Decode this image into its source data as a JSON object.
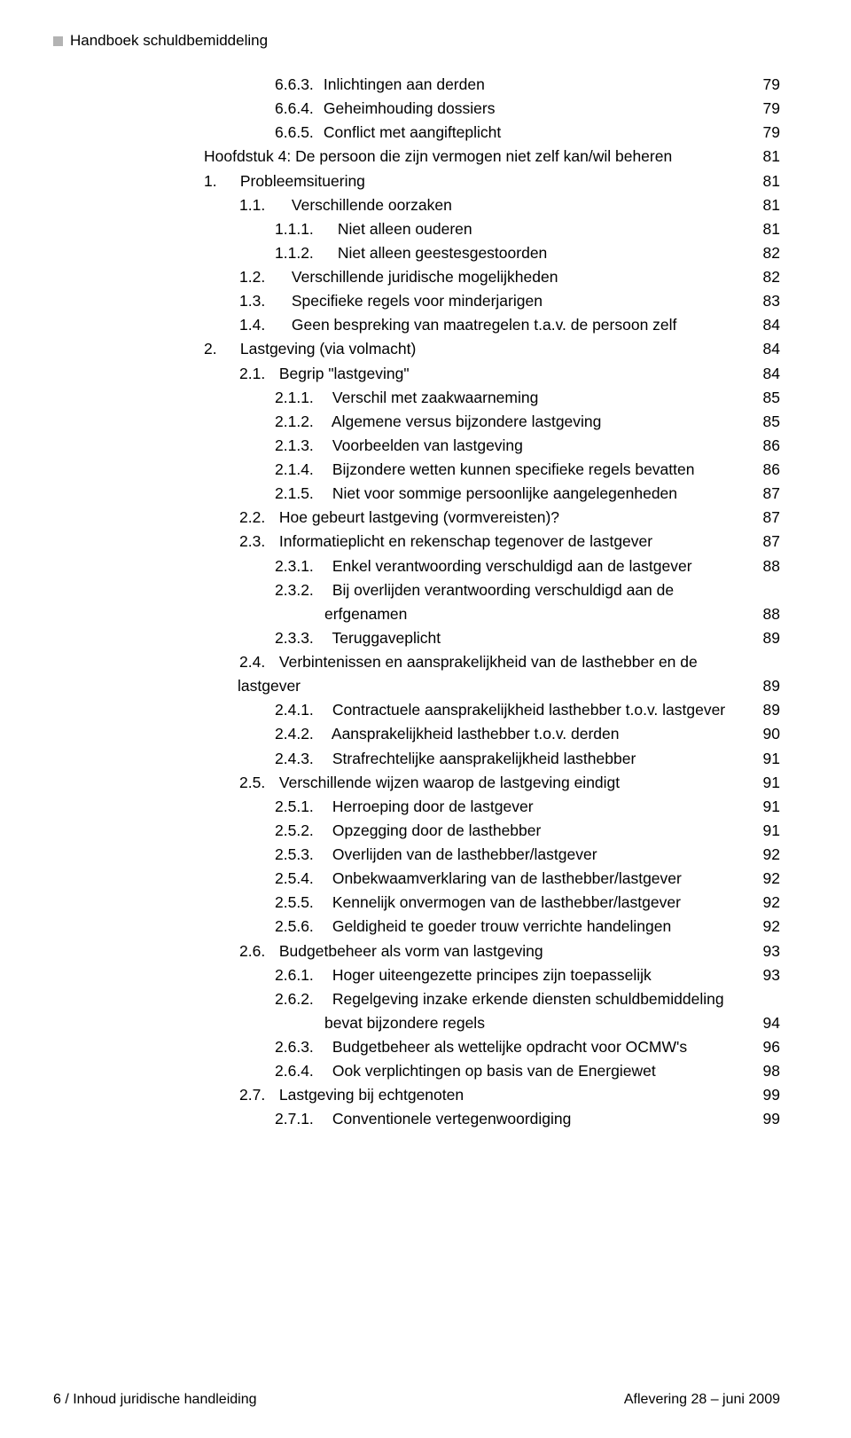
{
  "header": {
    "title": "Handboek schuldbemiddeling"
  },
  "toc": [
    {
      "indent": "ind3",
      "num": "6.6.3.",
      "numClass": "w-663",
      "text": "Inlichtingen aan derden",
      "page": "79"
    },
    {
      "indent": "ind3",
      "num": "6.6.4.",
      "numClass": "w-663",
      "text": "Geheimhouding dossiers",
      "page": "79"
    },
    {
      "indent": "ind3",
      "num": "6.6.5.",
      "numClass": "w-663",
      "text": "Conflict met aangifteplicht",
      "page": "79"
    },
    {
      "indent": "ind-ch",
      "num": "",
      "numClass": "",
      "text": "Hoofdstuk 4: De persoon die zijn vermogen niet zelf kan/wil beheren",
      "page": "81"
    },
    {
      "indent": "ind1",
      "num": "1.",
      "numClass": "w-1",
      "text": "Probleemsituering",
      "page": "81"
    },
    {
      "indent": "ind2",
      "num": "1.1.",
      "numClass": "w-11",
      "text": "Verschillende oorzaken",
      "page": "81"
    },
    {
      "indent": "ind3",
      "num": "1.1.1.",
      "numClass": "w-111",
      "text": "Niet alleen ouderen",
      "page": "81"
    },
    {
      "indent": "ind3",
      "num": "1.1.2.",
      "numClass": "w-111",
      "text": "Niet alleen geestesgestoorden",
      "page": "82"
    },
    {
      "indent": "ind2",
      "num": "1.2.",
      "numClass": "w-11",
      "text": "Verschillende juridische mogelijkheden",
      "page": "82"
    },
    {
      "indent": "ind2",
      "num": "1.3.",
      "numClass": "w-11",
      "text": "Specifieke regels voor minderjarigen",
      "page": "83"
    },
    {
      "indent": "ind2",
      "num": "1.4.",
      "numClass": "w-11",
      "text": "Geen bespreking van maatregelen t.a.v. de persoon zelf",
      "page": "84"
    },
    {
      "indent": "ind1",
      "num": "2.",
      "numClass": "w-1",
      "text": "Lastgeving (via volmacht)",
      "page": "84"
    },
    {
      "indent": "ind2",
      "num": "2.1.",
      "numClass": "w-21",
      "text": "Begrip \"lastgeving\"",
      "page": "84"
    },
    {
      "indent": "ind3",
      "num": "2.1.1.",
      "numClass": "w-211",
      "text": "Verschil met zaakwaarneming",
      "page": "85"
    },
    {
      "indent": "ind3",
      "num": "2.1.2.",
      "numClass": "w-211",
      "text": "Algemene versus bijzondere lastgeving",
      "page": "85"
    },
    {
      "indent": "ind3",
      "num": "2.1.3.",
      "numClass": "w-211",
      "text": "Voorbeelden van lastgeving",
      "page": "86"
    },
    {
      "indent": "ind3",
      "num": "2.1.4.",
      "numClass": "w-211",
      "text": "Bijzondere wetten kunnen specifieke regels bevatten",
      "page": "86"
    },
    {
      "indent": "ind3",
      "num": "2.1.5.",
      "numClass": "w-211",
      "text": "Niet voor sommige persoonlijke aangelegenheden",
      "page": "87"
    },
    {
      "indent": "ind2",
      "num": "2.2.",
      "numClass": "w-21",
      "text": "Hoe gebeurt lastgeving (vormvereisten)?",
      "page": "87"
    },
    {
      "indent": "ind2",
      "num": "2.3.",
      "numClass": "w-21",
      "text": "Informatieplicht en rekenschap tegenover de lastgever",
      "page": "87"
    },
    {
      "indent": "ind3",
      "num": "2.3.1.",
      "numClass": "w-211",
      "text": "Enkel verantwoording verschuldigd aan de lastgever",
      "page": "88"
    },
    {
      "indent": "ind3",
      "num": "2.3.2.",
      "numClass": "w-211",
      "text": "Bij overlijden verantwoording verschuldigd aan de",
      "page": ""
    },
    {
      "indent": "cont",
      "num": "",
      "numClass": "",
      "text": "erfgenamen",
      "page": "88"
    },
    {
      "indent": "ind3",
      "num": "2.3.3.",
      "numClass": "w-211",
      "text": "Teruggaveplicht",
      "page": "89"
    },
    {
      "indent": "ind2",
      "num": "2.4.",
      "numClass": "w-21",
      "text": "Verbintenissen en aansprakelijkheid van de lasthebber en de",
      "page": ""
    },
    {
      "indent": "cont2",
      "num": "",
      "numClass": "",
      "text": "lastgever",
      "page": "89"
    },
    {
      "indent": "ind3",
      "num": "2.4.1.",
      "numClass": "w-211",
      "text": "Contractuele aansprakelijkheid lasthebber t.o.v. lastgever",
      "page": "89"
    },
    {
      "indent": "ind3",
      "num": "2.4.2.",
      "numClass": "w-211",
      "text": "Aansprakelijkheid lasthebber t.o.v. derden",
      "page": "90"
    },
    {
      "indent": "ind3",
      "num": "2.4.3.",
      "numClass": "w-211",
      "text": "Strafrechtelijke aansprakelijkheid lasthebber",
      "page": "91"
    },
    {
      "indent": "ind2",
      "num": "2.5.",
      "numClass": "w-21",
      "text": "Verschillende wijzen waarop de lastgeving eindigt",
      "page": "91"
    },
    {
      "indent": "ind3",
      "num": "2.5.1.",
      "numClass": "w-211",
      "text": "Herroeping door de lastgever",
      "page": "91"
    },
    {
      "indent": "ind3",
      "num": "2.5.2.",
      "numClass": "w-211",
      "text": "Opzegging door de lasthebber",
      "page": "91"
    },
    {
      "indent": "ind3",
      "num": "2.5.3.",
      "numClass": "w-211",
      "text": "Overlijden van de lasthebber/lastgever",
      "page": "92"
    },
    {
      "indent": "ind3",
      "num": "2.5.4.",
      "numClass": "w-211",
      "text": "Onbekwaamverklaring van de lasthebber/lastgever",
      "page": "92"
    },
    {
      "indent": "ind3",
      "num": "2.5.5.",
      "numClass": "w-211",
      "text": "Kennelijk onvermogen van de lasthebber/lastgever",
      "page": "92"
    },
    {
      "indent": "ind3",
      "num": "2.5.6.",
      "numClass": "w-211",
      "text": "Geldigheid te goeder trouw verrichte handelingen",
      "page": "92"
    },
    {
      "indent": "ind2",
      "num": "2.6.",
      "numClass": "w-21",
      "text": "Budgetbeheer als vorm van lastgeving",
      "page": "93"
    },
    {
      "indent": "ind3",
      "num": "2.6.1.",
      "numClass": "w-211",
      "text": "Hoger uiteengezette principes zijn toepasselijk",
      "page": "93"
    },
    {
      "indent": "ind3",
      "num": "2.6.2.",
      "numClass": "w-211",
      "text": "Regelgeving inzake erkende diensten schuldbemiddeling",
      "page": ""
    },
    {
      "indent": "cont",
      "num": "",
      "numClass": "",
      "text": "bevat bijzondere regels",
      "page": "94"
    },
    {
      "indent": "ind3",
      "num": "2.6.3.",
      "numClass": "w-211",
      "text": "Budgetbeheer als wettelijke opdracht voor OCMW's",
      "page": "96"
    },
    {
      "indent": "ind3",
      "num": "2.6.4.",
      "numClass": "w-211",
      "text": "Ook verplichtingen op basis van de Energiewet",
      "page": "98"
    },
    {
      "indent": "ind2",
      "num": "2.7.",
      "numClass": "w-21",
      "text": "Lastgeving bij echtgenoten",
      "page": "99"
    },
    {
      "indent": "ind3",
      "num": "2.7.1.",
      "numClass": "w-211",
      "text": "Conventionele vertegenwoordiging",
      "page": "99"
    }
  ],
  "footer": {
    "left": "6 / Inhoud juridische handleiding",
    "right": "Aflevering 28 – juni 2009"
  }
}
